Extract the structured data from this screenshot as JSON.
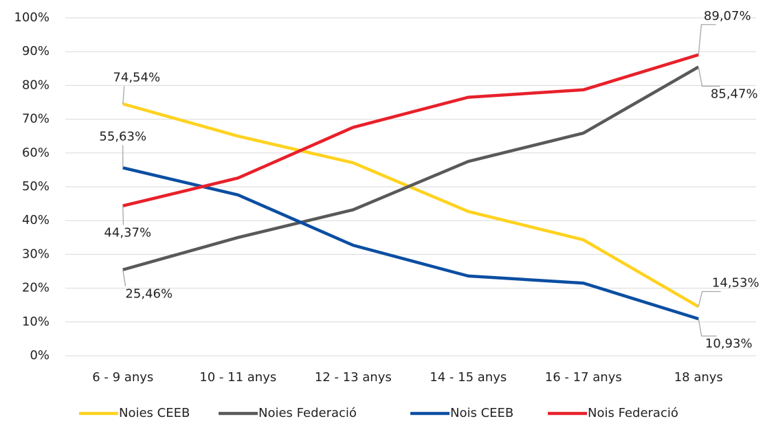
{
  "chart_data": {
    "type": "line",
    "categories": [
      "6 - 9 anys",
      "10 - 11 anys",
      "12 - 13 anys",
      "14 - 15 anys",
      "16 - 17 anys",
      "18 anys"
    ],
    "series": [
      {
        "name": "Noies CEEB",
        "color": "#ffd21f",
        "values": [
          74.54,
          65.0,
          57.1,
          42.7,
          34.3,
          14.53
        ],
        "value_labels": [
          "74,54%",
          null,
          null,
          null,
          null,
          "14,53%"
        ]
      },
      {
        "name": "Noies Federació",
        "color": "#595959",
        "values": [
          25.46,
          35.0,
          43.2,
          57.5,
          65.9,
          85.47
        ],
        "value_labels": [
          "25,46%",
          null,
          null,
          null,
          null,
          "85,47%"
        ]
      },
      {
        "name": "Nois CEEB",
        "color": "#0b4ea2",
        "values": [
          55.63,
          47.6,
          32.7,
          23.6,
          21.5,
          10.93
        ],
        "value_labels": [
          "55,63%",
          null,
          null,
          null,
          null,
          "10,93%"
        ]
      },
      {
        "name": "Nois Federació",
        "color": "#e8202a",
        "values": [
          44.37,
          52.6,
          67.6,
          76.5,
          78.7,
          89.07
        ],
        "value_labels": [
          "44,37%",
          null,
          null,
          null,
          null,
          "89,07%"
        ]
      }
    ],
    "ylim": [
      0,
      100
    ],
    "yticks": [
      {
        "value": 0,
        "label": "0%"
      },
      {
        "value": 10,
        "label": "10%"
      },
      {
        "value": 20,
        "label": "20%"
      },
      {
        "value": 30,
        "label": "30%"
      },
      {
        "value": 40,
        "label": "40%"
      },
      {
        "value": 50,
        "label": "50%"
      },
      {
        "value": 60,
        "label": "60%"
      },
      {
        "value": 70,
        "label": "70%"
      },
      {
        "value": 80,
        "label": "80%"
      },
      {
        "value": 90,
        "label": "90%"
      },
      {
        "value": 100,
        "label": "100%"
      }
    ],
    "grid": true,
    "legend": "bottom"
  }
}
